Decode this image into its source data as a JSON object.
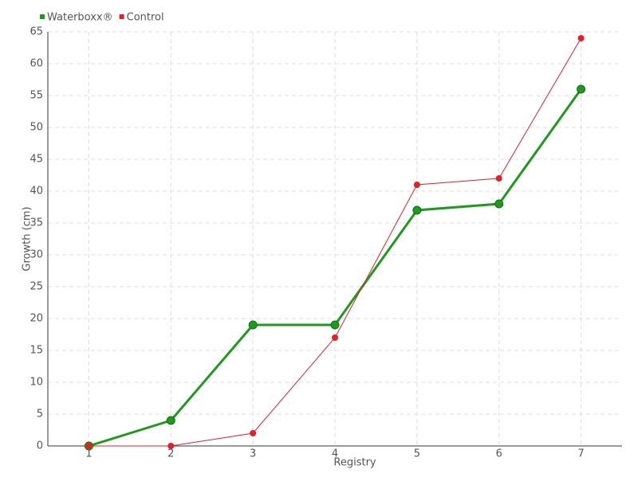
{
  "chart_data": {
    "type": "line",
    "x_label": "Registry",
    "y_label": "Growth (cm)",
    "categories": [
      "1",
      "2",
      "3",
      "4",
      "5",
      "6",
      "7"
    ],
    "series": [
      {
        "name": "Waterboxx®",
        "color": "#1f9a1f",
        "values": [
          0,
          4,
          19,
          19,
          37,
          38,
          56
        ]
      },
      {
        "name": "Control",
        "color": "#e0202c",
        "values": [
          0,
          0,
          2,
          17,
          41,
          42,
          64
        ]
      }
    ],
    "ylim": [
      0,
      65
    ],
    "yticks": [
      0,
      5,
      10,
      15,
      20,
      25,
      30,
      35,
      40,
      45,
      50,
      55,
      60,
      65
    ],
    "grid": true,
    "legend": "top-left"
  }
}
